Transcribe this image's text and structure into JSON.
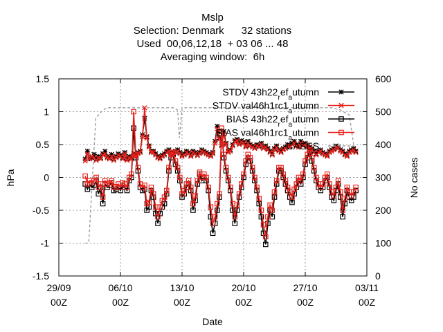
{
  "chart_data": {
    "type": "line",
    "title_lines": [
      "Mslp",
      "Selection: Denmark      32 stations",
      "Used  00,06,12,18  + 03 06 ... 48",
      "Averaging window:  6h"
    ],
    "xlabel": "Date",
    "ylabel": "hPa",
    "y2label": "No cases",
    "x_ticks": [
      {
        "date": "29/09",
        "time": "00Z",
        "day": 0
      },
      {
        "date": "06/10",
        "time": "00Z",
        "day": 7
      },
      {
        "date": "13/10",
        "time": "00Z",
        "day": 14
      },
      {
        "date": "20/10",
        "time": "00Z",
        "day": 21
      },
      {
        "date": "27/10",
        "time": "00Z",
        "day": 28
      },
      {
        "date": "03/11",
        "time": "00Z",
        "day": 35
      }
    ],
    "xlim": [
      "29/09 00Z",
      "03/11 00Z"
    ],
    "ylim": [
      -1.5,
      1.5
    ],
    "y_ticks": [
      "-1.5",
      "-1",
      "-0.5",
      "0",
      "0.5",
      "1",
      "1.5"
    ],
    "y2lim": [
      0,
      600
    ],
    "y2_ticks": [
      "0",
      "100",
      "200",
      "300",
      "400",
      "500",
      "600"
    ],
    "grid": true,
    "legend_position": "top-right",
    "series": [
      {
        "name": "STDV 43h22_ref_autumn",
        "legend_main": "STDV 43h22",
        "legend_sub": [
          "r",
          "ef",
          "a",
          "utumn"
        ],
        "color": "#000000",
        "marker": "star",
        "axis": "left",
        "values": []
      },
      {
        "name": "STDV val46h1rc1_autumn",
        "legend_main": "STDV val46h1rc1",
        "legend_sub": [
          "",
          "",
          "a",
          "utumn"
        ],
        "color": "#e8201a",
        "marker": "x",
        "axis": "left",
        "values": []
      },
      {
        "name": "BIAS 43h22_ref_autumn",
        "legend_main": "BIAS 43h22",
        "legend_sub": [
          "r",
          "ef",
          "a",
          "utumn"
        ],
        "color": "#000000",
        "marker": "square",
        "axis": "left",
        "values": []
      },
      {
        "name": "BIAS val46h1rc1_autumn",
        "legend_main": "BIAS val46h1rc1",
        "legend_sub": [
          "",
          "",
          "a",
          "utumn"
        ],
        "color": "#e8201a",
        "marker": "square",
        "axis": "left",
        "values": []
      },
      {
        "name": "CASES",
        "legend_main": "CASES",
        "legend_sub": [],
        "color": "#999999",
        "marker": "none",
        "axis": "right",
        "dashed": true,
        "values": []
      }
    ]
  }
}
